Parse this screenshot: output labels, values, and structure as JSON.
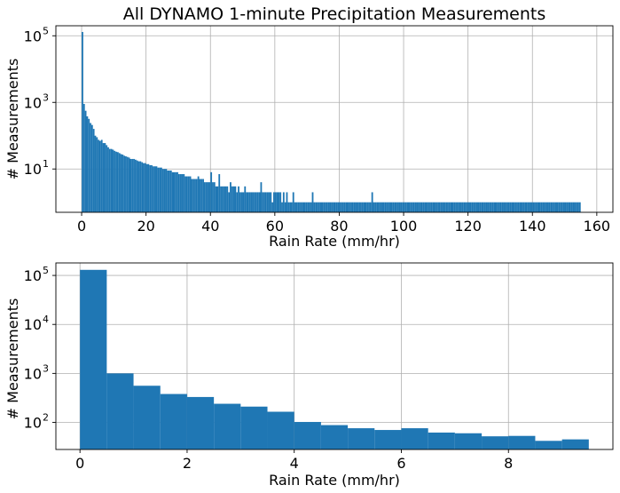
{
  "chart_data": [
    {
      "type": "bar",
      "title": "All DYNAMO 1-minute Precipitation Measurements",
      "xlabel": "Rain Rate (mm/hr)",
      "ylabel": "# Measurements",
      "yscale": "log",
      "xlim": [
        -8,
        165
      ],
      "ylim": [
        0.5,
        200000
      ],
      "grid": true,
      "color": "#1f77b4",
      "x_ticks": [
        0,
        20,
        40,
        60,
        80,
        100,
        120,
        140,
        160
      ],
      "x_tick_labels": [
        "0",
        "20",
        "40",
        "60",
        "80",
        "100",
        "120",
        "140",
        "160"
      ],
      "y_ticks": [
        100000,
        1000,
        10
      ],
      "y_tick_labels": [
        [
          "10",
          "5"
        ],
        [
          "10",
          "3"
        ],
        [
          "10",
          "1"
        ]
      ],
      "bin_width": 0.5,
      "bin_start": 0,
      "values": [
        130000,
        900,
        560,
        380,
        320,
        240,
        210,
        160,
        100,
        90,
        75,
        70,
        75,
        60,
        60,
        52,
        45,
        40,
        40,
        38,
        35,
        33,
        32,
        30,
        28,
        27,
        25,
        24,
        23,
        22,
        20,
        20,
        20,
        19,
        18,
        17,
        17,
        16,
        15,
        15,
        14,
        14,
        13,
        13,
        12,
        12,
        12,
        11,
        11,
        11,
        10,
        10,
        10,
        9,
        9,
        9,
        8,
        8,
        8,
        8,
        7,
        7,
        7,
        7,
        6,
        6,
        6,
        6,
        5,
        5,
        5,
        5,
        6,
        5,
        5,
        5,
        4,
        4,
        4,
        4,
        8,
        4,
        4,
        3,
        3,
        7,
        3,
        3,
        3,
        3,
        3,
        2,
        4,
        3,
        3,
        3,
        2,
        3,
        2,
        2,
        2,
        3,
        2,
        2,
        2,
        2,
        2,
        2,
        2,
        2,
        2,
        4,
        2,
        2,
        2,
        2,
        2,
        2,
        1,
        2,
        2,
        2,
        2,
        2,
        1,
        2,
        1,
        2,
        1,
        1,
        1,
        2,
        1,
        1,
        1,
        1,
        1,
        1,
        1,
        1,
        1,
        1,
        1,
        2,
        1,
        1,
        1,
        1,
        1,
        1,
        1,
        1,
        1,
        1,
        1,
        1,
        1,
        1,
        1,
        1,
        1,
        1,
        1,
        1,
        1,
        1,
        1,
        1,
        1,
        1,
        1,
        1,
        1,
        1,
        1,
        1,
        1,
        1,
        1,
        1,
        2,
        1,
        1,
        1,
        1,
        1,
        1,
        1,
        1,
        1,
        1,
        1,
        1,
        1,
        1,
        1,
        1,
        1,
        1,
        1,
        1,
        1,
        1,
        1,
        1,
        1,
        1,
        1,
        1,
        1,
        1,
        1,
        1,
        1,
        1,
        1,
        1,
        1,
        1,
        1,
        1,
        1,
        1,
        1,
        1,
        1,
        1,
        1,
        1,
        1,
        1,
        1,
        1,
        1,
        1,
        1,
        1,
        1,
        1,
        1,
        1,
        1,
        1,
        1,
        1,
        1,
        1,
        1,
        1,
        1,
        1,
        1,
        1,
        1,
        1,
        1,
        1,
        1,
        1,
        1,
        1,
        1,
        1,
        1,
        1,
        1,
        1,
        1,
        1,
        1,
        1,
        1,
        1,
        1,
        1,
        1,
        1,
        1,
        1,
        1,
        1,
        1,
        1,
        1,
        1,
        1,
        1,
        1,
        1,
        1,
        1,
        1,
        1,
        1,
        1,
        1,
        1,
        1,
        1,
        1,
        1,
        1,
        1,
        1,
        1,
        1,
        1,
        1,
        1,
        1
      ]
    },
    {
      "type": "bar",
      "title": "",
      "xlabel": "Rain Rate (mm/hr)",
      "ylabel": "# Measurements",
      "yscale": "log",
      "xlim": [
        -0.45,
        9.95
      ],
      "ylim": [
        28,
        180000
      ],
      "grid": true,
      "color": "#1f77b4",
      "x_ticks": [
        0,
        2,
        4,
        6,
        8
      ],
      "x_tick_labels": [
        "0",
        "2",
        "4",
        "6",
        "8"
      ],
      "y_ticks": [
        100000,
        10000,
        1000,
        100
      ],
      "y_tick_labels": [
        [
          "10",
          "5"
        ],
        [
          "10",
          "4"
        ],
        [
          "10",
          "3"
        ],
        [
          "10",
          "2"
        ]
      ],
      "bin_width": 0.5,
      "bin_start": 0,
      "values": [
        130000,
        1000,
        560,
        380,
        330,
        240,
        210,
        165,
        102,
        88,
        76,
        70,
        76,
        62,
        60,
        52,
        53,
        42,
        45
      ]
    }
  ]
}
